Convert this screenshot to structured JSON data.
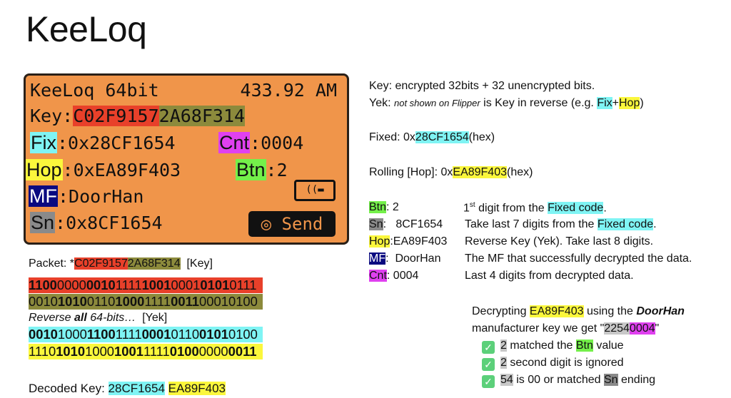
{
  "title": "KeeLoq",
  "flipper": {
    "protocol": "KeeLoq 64bit",
    "freq": "433.92 AM",
    "key_label": "Key:",
    "key_enc": "C02F9157",
    "key_unenc": "2A68F314",
    "fix_label": "Fix",
    "fix_value": ":0x28CF1654",
    "cnt_label": "Cnt",
    "cnt_value": ":0004",
    "hop_label": "Hop",
    "hop_value": ":0xEA89F403",
    "btn_label": "Btn",
    "btn_value": ":2",
    "mf_label": "MF",
    "mf_value": ":DoorHan",
    "sn_label": "Sn",
    "sn_value": ":0x8CF1654",
    "remote_icon": "remote-icon",
    "send_label": "◎ Send"
  },
  "packet": {
    "label": "Packet: *",
    "enc": "C02F9157",
    "unenc": "2A68F314",
    "suffix": "[Key]"
  },
  "binary_rows": [
    {
      "color": "red",
      "groups": [
        [
          "1100",
          1
        ],
        [
          "0000",
          0
        ],
        [
          "0010",
          1
        ],
        [
          "1111",
          0
        ],
        [
          "1001",
          1
        ],
        [
          "0001",
          0
        ],
        [
          "0101",
          1
        ],
        [
          "0111",
          0
        ]
      ]
    },
    {
      "color": "olive",
      "groups": [
        [
          "0010",
          0
        ],
        [
          "1010",
          1
        ],
        [
          "0110",
          0
        ],
        [
          "1000",
          1
        ],
        [
          "1111",
          0
        ],
        [
          "0011",
          1
        ],
        [
          "0001",
          0
        ],
        [
          "0100",
          0
        ]
      ]
    },
    {
      "color": "cyan",
      "groups": [
        [
          "0010",
          1
        ],
        [
          "1000",
          0
        ],
        [
          "1100",
          1
        ],
        [
          "1111",
          0
        ],
        [
          "0001",
          1
        ],
        [
          "0110",
          0
        ],
        [
          "0101",
          1
        ],
        [
          "0100",
          0
        ]
      ]
    },
    {
      "color": "yel",
      "groups": [
        [
          "1110",
          0
        ],
        [
          "1010",
          1
        ],
        [
          "1000",
          0
        ],
        [
          "1001",
          1
        ],
        [
          "1111",
          0
        ],
        [
          "0100",
          1
        ],
        [
          "0000",
          0
        ],
        [
          "0011",
          1
        ]
      ]
    }
  ],
  "reverse": {
    "pre": "Reverse ",
    "bold": "all",
    "post": " 64-bits…",
    "suffix": "  [Yek]"
  },
  "decoded": {
    "label": "Decoded Key:",
    "fix": "28CF1654",
    "hop": "EA89F403"
  },
  "right": {
    "key_line": "Key: encrypted 32bits + 32 unencrypted bits.",
    "yek_pre": "Yek: ",
    "yek_italic": "not shown on Flipper",
    "yek_mid": " is Key in reverse (e.g. ",
    "yek_fix": "Fix",
    "yek_plus": "+",
    "yek_hop": "Hop",
    "yek_end": ")",
    "fixed_pre": "Fixed: 0x",
    "fixed_val": "28CF1654",
    "fixed_post": "(hex)",
    "rolling_pre": "Rolling [Hop]: 0x",
    "rolling_val": "EA89F403",
    "rolling_post": "(hex)"
  },
  "fields": [
    {
      "label": "Btn",
      "value": ": 2",
      "desc_pre": "1",
      "desc_sup": "st",
      "desc_mid": " digit from the ",
      "desc_hl": "Fixed code",
      "desc_post": "."
    },
    {
      "label": "Sn",
      "value": ":   8CF1654",
      "desc_pre": "Take last 7 digits from the ",
      "desc_hl": "Fixed code",
      "desc_post": "."
    },
    {
      "label": "Hop",
      "value": ":EA89F403",
      "desc": "Reverse Key (Yek). Take last 8 digits."
    },
    {
      "label": "MF",
      "value": ":  DoorHan",
      "desc": "The MF that successfully decrypted the data."
    },
    {
      "label": "Cnt",
      "value": ": 0004",
      "desc": "Last 4 digits from decrypted data."
    }
  ],
  "decrypt": {
    "pre": "Decrypting ",
    "hop": "EA89F403",
    "mid": " using the ",
    "mf": "DoorHan",
    "line2_pre": "manufacturer key we get \"",
    "result_a": "2254",
    "result_b": "0004",
    "line2_post": "\"",
    "checks": [
      {
        "a": "2",
        "b": " matched the ",
        "hl": "Btn",
        "c": " value"
      },
      {
        "a": "2",
        "b": " second digit is ignored"
      },
      {
        "a": "54",
        "b": " is 00 or matched ",
        "hl": "Sn",
        "c": " ending"
      }
    ],
    "check_icon": "checkmark-icon"
  }
}
